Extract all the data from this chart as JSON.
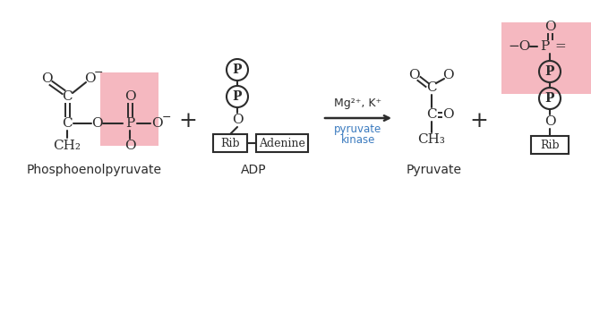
{
  "bg_color": "#ffffff",
  "pink_color": "#f5b8c0",
  "text_color": "#2c2c2c",
  "arrow_color": "#2c2c2c",
  "enzyme_color": "#3a7abf",
  "bond_color": "#2c2c2c",
  "label_pep": "Phosphoenolpyruvate",
  "label_adp": "ADP",
  "label_pyruvate": "Pyruvate",
  "arrow_label1": "Mg²⁺, K⁺",
  "arrow_label2": "pyruvate",
  "arrow_label3": "kinase"
}
